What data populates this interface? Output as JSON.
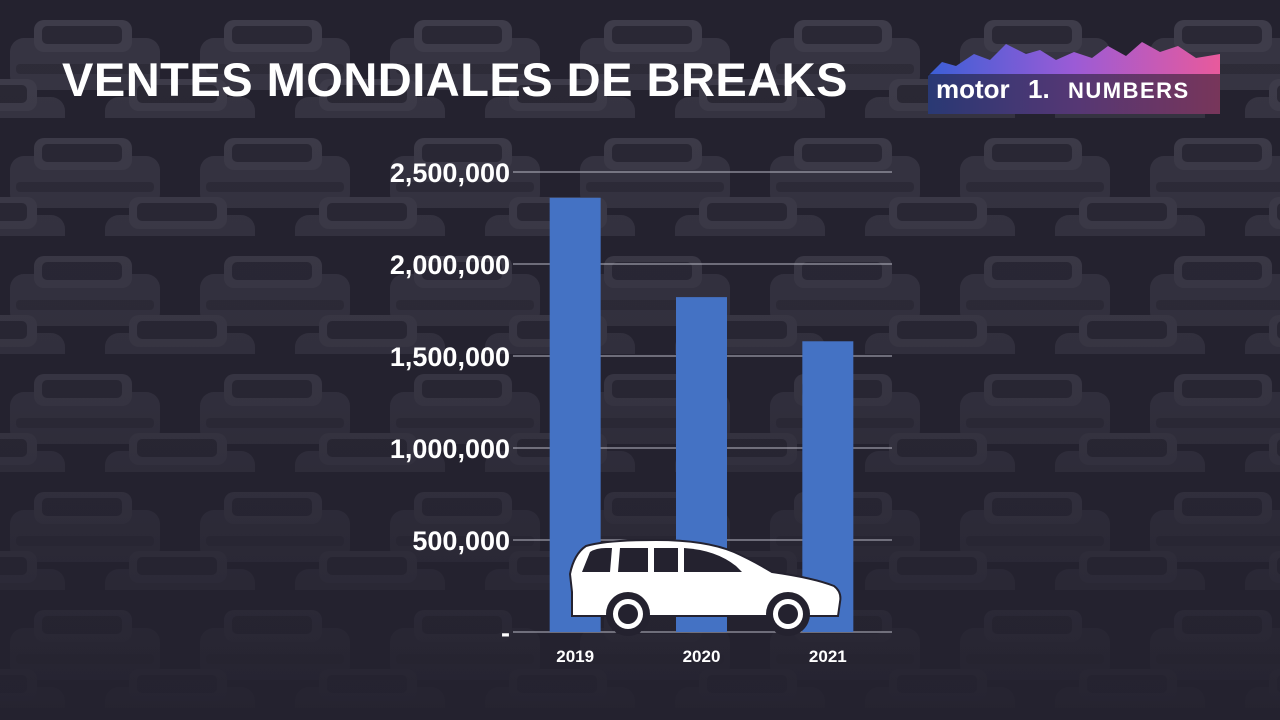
{
  "title": "VENTES MONDIALES DE BREAKS",
  "logo": {
    "text_left": "motor",
    "text_mid": "1.",
    "text_right": "NUMBERS"
  },
  "colors": {
    "background": "#24222f",
    "bar": "#4472c4",
    "gridline": "#b8b8c4",
    "text": "#ffffff"
  },
  "icons": {
    "car": "station-wagon-icon"
  },
  "chart_data": {
    "type": "bar",
    "categories": [
      "2019",
      "2020",
      "2021"
    ],
    "values": [
      2360000,
      1820000,
      1580000
    ],
    "title": "VENTES MONDIALES DE BREAKS",
    "xlabel": "",
    "ylabel": "",
    "ylim": [
      0,
      2500000
    ],
    "yticks": [
      0,
      500000,
      1000000,
      1500000,
      2000000,
      2500000
    ],
    "ytick_labels": [
      "-",
      "500,000",
      "1,000,000",
      "1,500,000",
      "2,000,000",
      "2,500,000"
    ],
    "grid": true,
    "legend": "none"
  }
}
